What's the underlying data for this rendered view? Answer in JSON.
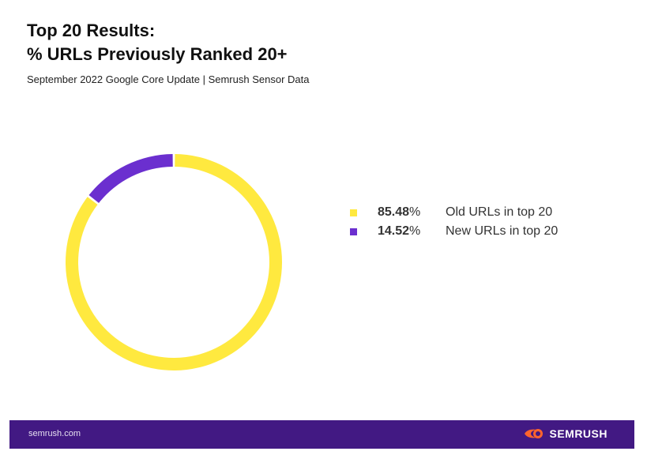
{
  "header": {
    "title_line1": "Top 20 Results:",
    "title_line2": "% URLs Previously Ranked 20+",
    "subtitle": "September 2022 Google Core Update | Semrush Sensor Data"
  },
  "chart_data": {
    "type": "pie",
    "variant": "donut",
    "slices": [
      {
        "label": "Old URLs in top 20",
        "value": 85.48,
        "display": "85.48",
        "unit": "%",
        "color": "#FFE93F"
      },
      {
        "label": "New URLs in top 20",
        "value": 14.52,
        "display": "14.52",
        "unit": "%",
        "color": "#6B2FCF"
      }
    ],
    "legend_position": "right"
  },
  "footer": {
    "site": "semrush.com",
    "brand": "SEMRUSH",
    "brand_icon": "semrush-fireball-icon",
    "background_color": "#421983",
    "icon_color": "#FF642D"
  }
}
